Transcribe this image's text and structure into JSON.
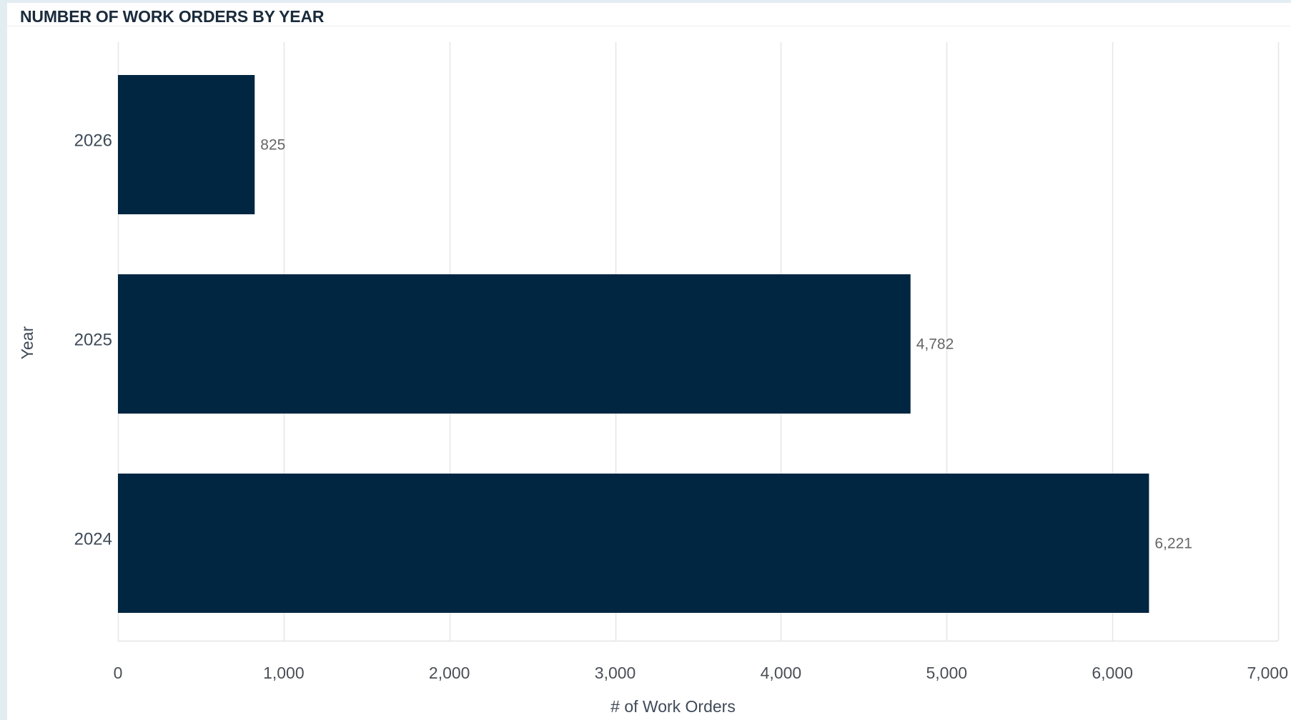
{
  "panel": {
    "title": "NUMBER OF WORK ORDERS BY YEAR"
  },
  "colors": {
    "bar": "#002642",
    "grid": "#e6e6e6",
    "page_background": "#e2edf2"
  },
  "chart_data": {
    "type": "bar",
    "orientation": "horizontal",
    "title": "NUMBER OF WORK ORDERS BY YEAR",
    "xlabel": "# of Work Orders",
    "ylabel": "Year",
    "categories": [
      "2026",
      "2025",
      "2024"
    ],
    "values": [
      825,
      4782,
      6221
    ],
    "value_labels": [
      "825",
      "4,782",
      "6,221"
    ],
    "xlim": [
      0,
      7000
    ],
    "xticks": [
      0,
      1000,
      2000,
      3000,
      4000,
      5000,
      6000,
      7000
    ],
    "xtick_labels": [
      "0",
      "1,000",
      "2,000",
      "3,000",
      "4,000",
      "5,000",
      "6,000",
      "7,000"
    ],
    "grid": true,
    "legend": "none"
  }
}
